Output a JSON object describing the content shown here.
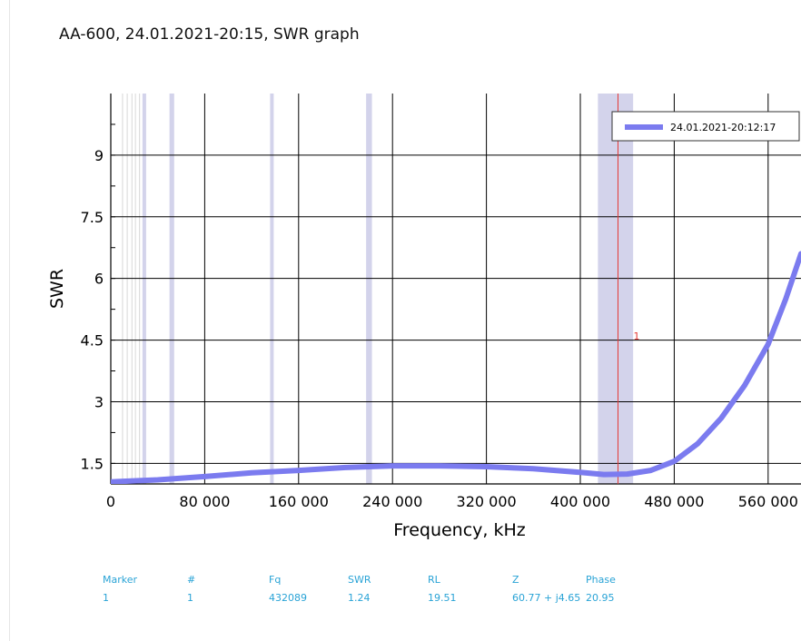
{
  "title": "AA-600, 24.01.2021-20:15, SWR graph",
  "chart_data": {
    "type": "line",
    "title": "AA-600, 24.01.2021-20:15, SWR graph",
    "xlabel": "Frequency, kHz",
    "ylabel": "SWR",
    "xlim": [
      0,
      588000
    ],
    "ylim": [
      1.0,
      10.5
    ],
    "x_ticks": [
      0,
      80000,
      160000,
      240000,
      320000,
      400000,
      480000,
      560000
    ],
    "x_tick_labels": [
      "0",
      "80 000",
      "160 000",
      "240 000",
      "320 000",
      "400 000",
      "480 000",
      "560 000"
    ],
    "y_ticks": [
      1.5,
      3,
      4.5,
      6,
      7.5,
      9
    ],
    "y_tick_labels": [
      "1.5",
      "3",
      "4.5",
      "6",
      "7.5",
      "9"
    ],
    "grid": true,
    "legend_position": "top-right",
    "series": [
      {
        "name": "24.01.2021-20:12:17",
        "color": "#7b7bef",
        "x": [
          0,
          40000,
          80000,
          120000,
          160000,
          200000,
          240000,
          280000,
          320000,
          360000,
          400000,
          420000,
          440000,
          460000,
          480000,
          500000,
          520000,
          540000,
          560000,
          575000,
          588000
        ],
        "y": [
          1.05,
          1.1,
          1.18,
          1.27,
          1.33,
          1.4,
          1.44,
          1.44,
          1.42,
          1.37,
          1.28,
          1.23,
          1.24,
          1.33,
          1.55,
          1.98,
          2.6,
          3.4,
          4.4,
          5.5,
          6.6
        ]
      }
    ],
    "bands": [
      [
        27000,
        29700
      ],
      [
        50000,
        54000
      ],
      [
        135700,
        137800
      ],
      [
        217500,
        222500
      ],
      [
        415000,
        445000
      ]
    ],
    "minor_lines_x": [
      10000,
      14000,
      18000,
      21000,
      24500
    ],
    "marker": {
      "label": "1",
      "x": 432089,
      "y": 4.6,
      "color": "#e53935"
    }
  },
  "marker_table": {
    "headers": [
      "Marker",
      "#",
      "Fq",
      "SWR",
      "RL",
      "Z",
      "Phase"
    ],
    "rows": [
      [
        "1",
        "1",
        "432089",
        "1.24",
        "19.51",
        "60.77 + j4.65",
        "20.95"
      ]
    ]
  },
  "colors": {
    "band": "#d3d3eb",
    "grid": "#000000",
    "table_text": "#29a3d6"
  }
}
